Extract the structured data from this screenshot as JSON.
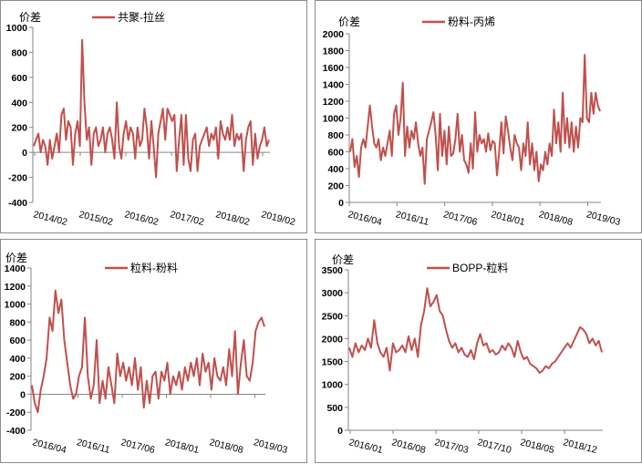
{
  "chart_data": [
    {
      "type": "line",
      "ylabel": "价差",
      "legend": "共聚-拉丝",
      "legend_position": "top-center",
      "ylim": [
        -400,
        1000
      ],
      "yticks": [
        1000,
        800,
        600,
        400,
        200,
        0,
        -200,
        -400
      ],
      "xticks": [
        "2014/02",
        "2015/02",
        "2016/02",
        "2017/02",
        "2018/02",
        "2019/02"
      ],
      "x_range": [
        "2014/02",
        "2019/03"
      ],
      "color": "#C0504D",
      "values": [
        50,
        100,
        150,
        0,
        100,
        50,
        -100,
        100,
        -50,
        50,
        150,
        0,
        300,
        350,
        100,
        250,
        200,
        -100,
        150,
        250,
        50,
        900,
        400,
        100,
        200,
        -100,
        150,
        200,
        50,
        100,
        200,
        0,
        150,
        200,
        100,
        -50,
        400,
        50,
        -50,
        150,
        250,
        100,
        200,
        150,
        -50,
        200,
        50,
        100,
        350,
        200,
        -50,
        250,
        50,
        -200,
        150,
        250,
        350,
        100,
        350,
        300,
        250,
        300,
        -150,
        100,
        300,
        -100,
        300,
        -50,
        -150,
        100,
        150,
        -150,
        50,
        100,
        150,
        200,
        50,
        150,
        100,
        200,
        -50,
        250,
        150,
        100,
        200,
        100,
        300,
        50,
        150,
        100,
        150,
        -150,
        100,
        200,
        250,
        -100,
        150,
        -50,
        50,
        100,
        200,
        50,
        100
      ]
    },
    {
      "type": "line",
      "ylabel": "价差",
      "legend": "粉料-丙烯",
      "legend_position": "top-center",
      "ylim": [
        0,
        2000
      ],
      "yticks": [
        2000,
        1800,
        1600,
        1400,
        1200,
        1000,
        800,
        600,
        400,
        200,
        0
      ],
      "xticks": [
        "2016/04",
        "2016/11",
        "2017/06",
        "2018/01",
        "2018/08",
        "2019/03"
      ],
      "x_range": [
        "2016/04",
        "2019/05"
      ],
      "color": "#C0504D",
      "values": [
        600,
        750,
        420,
        550,
        300,
        650,
        750,
        650,
        900,
        1150,
        900,
        700,
        650,
        750,
        500,
        650,
        550,
        700,
        850,
        550,
        1050,
        1150,
        800,
        1000,
        1420,
        550,
        900,
        650,
        850,
        750,
        950,
        700,
        550,
        650,
        220,
        750,
        850,
        950,
        1070,
        800,
        380,
        1050,
        550,
        850,
        450,
        900,
        550,
        580,
        750,
        1050,
        600,
        800,
        500,
        450,
        350,
        700,
        400,
        1070,
        600,
        800,
        700,
        750,
        600,
        820,
        620,
        730,
        700,
        320,
        600,
        950,
        580,
        1020,
        850,
        650,
        500,
        800,
        700,
        650,
        380,
        700,
        550,
        950,
        450,
        700,
        380,
        600,
        250,
        450,
        380,
        600,
        450,
        700,
        550,
        1100,
        700,
        950,
        600,
        1300,
        700,
        1000,
        650,
        950,
        600,
        900,
        650,
        1000,
        950,
        1750,
        1000,
        950,
        1300,
        1050,
        1300,
        1150,
        1080
      ]
    },
    {
      "type": "line",
      "ylabel": "价差",
      "legend": "粒料-粉料",
      "legend_position": "top-center",
      "ylim": [
        -400,
        1400
      ],
      "yticks": [
        1400,
        1200,
        1000,
        800,
        600,
        400,
        200,
        0,
        -200,
        -400
      ],
      "xticks": [
        "2016/04",
        "2016/11",
        "2017/06",
        "2018/01",
        "2018/08",
        "2019/03"
      ],
      "x_range": [
        "2016/04",
        "2019/05"
      ],
      "color": "#C0504D",
      "values": [
        100,
        -100,
        -200,
        50,
        200,
        400,
        850,
        700,
        1150,
        900,
        1050,
        600,
        350,
        100,
        -50,
        0,
        200,
        300,
        850,
        200,
        -50,
        100,
        600,
        -100,
        150,
        -50,
        300,
        100,
        -100,
        450,
        200,
        350,
        150,
        300,
        100,
        400,
        50,
        300,
        -150,
        150,
        -100,
        200,
        250,
        -50,
        250,
        150,
        350,
        0,
        200,
        100,
        250,
        50,
        300,
        150,
        350,
        200,
        400,
        100,
        450,
        250,
        350,
        50,
        400,
        200,
        150,
        300,
        100,
        500,
        200,
        700,
        0,
        350,
        600,
        200,
        150,
        350,
        700,
        800,
        850,
        750
      ]
    },
    {
      "type": "line",
      "ylabel": "价差",
      "legend": "BOPP-粒料",
      "legend_position": "top-center",
      "ylim": [
        0,
        3500
      ],
      "yticks": [
        3500,
        3000,
        2500,
        2000,
        1500,
        1000,
        500,
        0
      ],
      "xticks": [
        "2016/01",
        "2016/08",
        "2017/03",
        "2017/10",
        "2018/05",
        "2018/12"
      ],
      "x_range": [
        "2016/01",
        "2019/03"
      ],
      "color": "#C0504D",
      "values": [
        1800,
        1600,
        1900,
        1700,
        1850,
        1750,
        2000,
        1800,
        2400,
        1900,
        1700,
        1600,
        1800,
        1300,
        1900,
        1700,
        1750,
        1850,
        1700,
        2050,
        1750,
        2000,
        1600,
        2300,
        2600,
        3100,
        2700,
        2800,
        2950,
        2600,
        2500,
        2200,
        1950,
        1800,
        1900,
        1700,
        1800,
        1650,
        1600,
        1750,
        1550,
        1900,
        2100,
        1850,
        1900,
        1700,
        1750,
        1650,
        1700,
        1850,
        1750,
        1900,
        1800,
        1600,
        1950,
        1700,
        1550,
        1600,
        1450,
        1400,
        1350,
        1250,
        1300,
        1400,
        1350,
        1450,
        1500,
        1600,
        1700,
        1800,
        1900,
        1800,
        1950,
        2100,
        2250,
        2200,
        2100,
        1900,
        2000,
        1850,
        1950,
        1700
      ]
    }
  ]
}
